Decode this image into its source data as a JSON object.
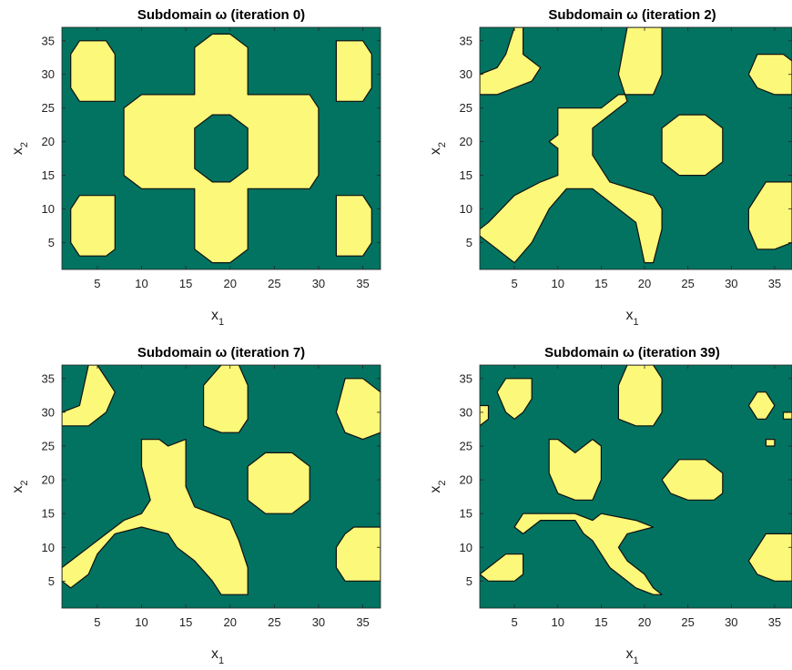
{
  "colors": {
    "background": "#027360",
    "region": "#fbf87a",
    "outline": "#111111",
    "axis": "#262626"
  },
  "chart_data": [
    {
      "type": "region-map",
      "title": "Subdomain ω (iteration 0)",
      "xlabel": "x",
      "xlabel_sub": "1",
      "ylabel": "x",
      "ylabel_sub": "2",
      "xlim": [
        1,
        37
      ],
      "ylim": [
        1,
        37
      ],
      "xticks": [
        5,
        10,
        15,
        20,
        25,
        30,
        35
      ],
      "yticks": [
        5,
        10,
        15,
        20,
        25,
        30,
        35
      ],
      "regions": [
        [
          [
            3,
            35
          ],
          [
            6,
            35
          ],
          [
            7,
            33
          ],
          [
            7,
            26
          ],
          [
            3,
            26
          ],
          [
            2,
            28
          ],
          [
            2,
            33
          ]
        ],
        [
          [
            32,
            35
          ],
          [
            35,
            35
          ],
          [
            36,
            33
          ],
          [
            36,
            28
          ],
          [
            35,
            26
          ],
          [
            32,
            26
          ]
        ],
        [
          [
            3,
            12
          ],
          [
            7,
            12
          ],
          [
            7,
            4
          ],
          [
            6,
            3
          ],
          [
            3,
            3
          ],
          [
            2,
            5
          ],
          [
            2,
            10
          ]
        ],
        [
          [
            32,
            12
          ],
          [
            35,
            12
          ],
          [
            36,
            10
          ],
          [
            36,
            5
          ],
          [
            35,
            3
          ],
          [
            32,
            3
          ]
        ],
        [
          [
            18,
            36
          ],
          [
            20,
            36
          ],
          [
            22,
            34
          ],
          [
            22,
            27
          ],
          [
            29,
            27
          ],
          [
            30,
            25
          ],
          [
            30,
            15
          ],
          [
            29,
            13
          ],
          [
            22,
            13
          ],
          [
            22,
            4
          ],
          [
            20,
            2
          ],
          [
            18,
            2
          ],
          [
            16,
            4
          ],
          [
            16,
            13
          ],
          [
            10,
            13
          ],
          [
            8,
            15
          ],
          [
            8,
            25
          ],
          [
            10,
            27
          ],
          [
            16,
            27
          ],
          [
            16,
            34
          ]
        ],
        [
          [
            18,
            24
          ],
          [
            20,
            24
          ],
          [
            22,
            22
          ],
          [
            22,
            16
          ],
          [
            20,
            14
          ],
          [
            18,
            14
          ],
          [
            16,
            16
          ],
          [
            16,
            22
          ]
        ]
      ],
      "holes": [
        5
      ]
    },
    {
      "type": "region-map",
      "title": "Subdomain ω (iteration 2)",
      "xlabel": "x",
      "xlabel_sub": "1",
      "ylabel": "x",
      "ylabel_sub": "2",
      "xlim": [
        1,
        37
      ],
      "ylim": [
        1,
        37
      ],
      "xticks": [
        5,
        10,
        15,
        20,
        25,
        30,
        35
      ],
      "yticks": [
        5,
        10,
        15,
        20,
        25,
        30,
        35
      ],
      "regions": [
        [
          [
            5,
            37
          ],
          [
            6,
            37
          ],
          [
            6,
            33
          ],
          [
            8,
            31
          ],
          [
            7,
            29
          ],
          [
            5,
            28
          ],
          [
            3,
            27
          ],
          [
            1,
            27
          ],
          [
            1,
            30
          ],
          [
            3,
            31
          ],
          [
            4,
            33
          ]
        ],
        [
          [
            18,
            37
          ],
          [
            22,
            37
          ],
          [
            22,
            30
          ],
          [
            21,
            27
          ],
          [
            17,
            27
          ],
          [
            15,
            25
          ],
          [
            10,
            25
          ],
          [
            10,
            21
          ],
          [
            9,
            20
          ],
          [
            10,
            19
          ],
          [
            10,
            15
          ],
          [
            8,
            14
          ],
          [
            5,
            12
          ],
          [
            2,
            8
          ],
          [
            1,
            7
          ],
          [
            1,
            6
          ],
          [
            3,
            4
          ],
          [
            5,
            2
          ],
          [
            7,
            5
          ],
          [
            9,
            10
          ],
          [
            11,
            13
          ],
          [
            14,
            13
          ],
          [
            16,
            11
          ],
          [
            19,
            8
          ],
          [
            20,
            2
          ],
          [
            21,
            2
          ],
          [
            22,
            7
          ],
          [
            22,
            10
          ],
          [
            21,
            12
          ],
          [
            16,
            14
          ],
          [
            14,
            18
          ],
          [
            14,
            22
          ],
          [
            16,
            24
          ],
          [
            18,
            26
          ],
          [
            17,
            30
          ]
        ],
        [
          [
            33,
            33
          ],
          [
            36,
            33
          ],
          [
            37,
            32
          ],
          [
            37,
            27
          ],
          [
            35,
            27
          ],
          [
            33,
            28
          ],
          [
            32,
            30
          ]
        ],
        [
          [
            24,
            24
          ],
          [
            27,
            24
          ],
          [
            29,
            22
          ],
          [
            29,
            17
          ],
          [
            27,
            15
          ],
          [
            24,
            15
          ],
          [
            22,
            17
          ],
          [
            22,
            22
          ]
        ],
        [
          [
            34,
            14
          ],
          [
            37,
            14
          ],
          [
            37,
            5
          ],
          [
            35,
            4
          ],
          [
            33,
            4
          ],
          [
            32,
            7
          ],
          [
            32,
            10
          ],
          [
            33,
            12
          ]
        ]
      ],
      "holes": []
    },
    {
      "type": "region-map",
      "title": "Subdomain ω (iteration 7)",
      "xlabel": "x",
      "xlabel_sub": "1",
      "ylabel": "x",
      "ylabel_sub": "2",
      "xlim": [
        1,
        37
      ],
      "ylim": [
        1,
        37
      ],
      "xticks": [
        5,
        10,
        15,
        20,
        25,
        30,
        35
      ],
      "yticks": [
        5,
        10,
        15,
        20,
        25,
        30,
        35
      ],
      "regions": [
        [
          [
            4,
            37
          ],
          [
            5,
            37
          ],
          [
            6,
            35
          ],
          [
            7,
            33
          ],
          [
            6,
            30
          ],
          [
            4,
            28
          ],
          [
            1,
            28
          ],
          [
            1,
            30
          ],
          [
            3,
            31
          ]
        ],
        [
          [
            19,
            37
          ],
          [
            21,
            37
          ],
          [
            22,
            34
          ],
          [
            22,
            29
          ],
          [
            21,
            27
          ],
          [
            19,
            27
          ],
          [
            17,
            28
          ],
          [
            17,
            34
          ]
        ],
        [
          [
            33,
            35
          ],
          [
            35,
            35
          ],
          [
            37,
            33
          ],
          [
            37,
            27
          ],
          [
            35,
            26
          ],
          [
            33,
            27
          ],
          [
            32,
            30
          ]
        ],
        [
          [
            10,
            26
          ],
          [
            12,
            26
          ],
          [
            13,
            25
          ],
          [
            15,
            26
          ],
          [
            15,
            24
          ],
          [
            15,
            19
          ],
          [
            16,
            16
          ],
          [
            18,
            15
          ],
          [
            20,
            14
          ],
          [
            21,
            11
          ],
          [
            22,
            7
          ],
          [
            22,
            3
          ],
          [
            19,
            3
          ],
          [
            18,
            5
          ],
          [
            16,
            8
          ],
          [
            14,
            10
          ],
          [
            13,
            12
          ],
          [
            10,
            13
          ],
          [
            7,
            12
          ],
          [
            5,
            9
          ],
          [
            4,
            6
          ],
          [
            2,
            4
          ],
          [
            1,
            5
          ],
          [
            1,
            7
          ],
          [
            2,
            8
          ],
          [
            4,
            10
          ],
          [
            6,
            12
          ],
          [
            8,
            14
          ],
          [
            10,
            15
          ],
          [
            11,
            17
          ],
          [
            10,
            22
          ]
        ],
        [
          [
            24,
            24
          ],
          [
            27,
            24
          ],
          [
            29,
            22
          ],
          [
            29,
            17
          ],
          [
            27,
            15
          ],
          [
            24,
            15
          ],
          [
            22,
            17
          ],
          [
            22,
            22
          ]
        ],
        [
          [
            34,
            13
          ],
          [
            37,
            13
          ],
          [
            37,
            5
          ],
          [
            35,
            5
          ],
          [
            33,
            5
          ],
          [
            32,
            7
          ],
          [
            32,
            10
          ],
          [
            33,
            12
          ]
        ]
      ],
      "holes": []
    },
    {
      "type": "region-map",
      "title": "Subdomain ω (iteration 39)",
      "xlabel": "x",
      "xlabel_sub": "1",
      "ylabel": "x",
      "ylabel_sub": "2",
      "xlim": [
        1,
        37
      ],
      "ylim": [
        1,
        37
      ],
      "xticks": [
        5,
        10,
        15,
        20,
        25,
        30,
        35
      ],
      "yticks": [
        5,
        10,
        15,
        20,
        25,
        30,
        35
      ],
      "regions": [
        [
          [
            4,
            35
          ],
          [
            7,
            35
          ],
          [
            7,
            32
          ],
          [
            6,
            30
          ],
          [
            5,
            29
          ],
          [
            4,
            30
          ],
          [
            3,
            33
          ]
        ],
        [
          [
            18,
            37
          ],
          [
            21,
            37
          ],
          [
            22,
            35
          ],
          [
            22,
            30
          ],
          [
            21,
            28
          ],
          [
            19,
            28
          ],
          [
            17,
            29
          ],
          [
            17,
            34
          ]
        ],
        [
          [
            1,
            31
          ],
          [
            2,
            31
          ],
          [
            2,
            29
          ],
          [
            1,
            28
          ]
        ],
        [
          [
            33,
            33
          ],
          [
            34,
            33
          ],
          [
            35,
            31
          ],
          [
            34,
            29
          ],
          [
            33,
            29
          ],
          [
            32,
            31
          ]
        ],
        [
          [
            36,
            30
          ],
          [
            37,
            30
          ],
          [
            37,
            29
          ],
          [
            36,
            29
          ]
        ],
        [
          [
            34,
            26
          ],
          [
            35,
            26
          ],
          [
            35,
            25
          ],
          [
            34,
            25
          ]
        ],
        [
          [
            9,
            26
          ],
          [
            10,
            26
          ],
          [
            12,
            24
          ],
          [
            14,
            26
          ],
          [
            15,
            25
          ],
          [
            15,
            20
          ],
          [
            14,
            17
          ],
          [
            12,
            17
          ],
          [
            10,
            18
          ],
          [
            9,
            21
          ]
        ],
        [
          [
            24,
            23
          ],
          [
            27,
            23
          ],
          [
            29,
            21
          ],
          [
            29,
            18
          ],
          [
            28,
            17
          ],
          [
            25,
            17
          ],
          [
            23,
            18
          ],
          [
            22,
            20
          ]
        ],
        [
          [
            6,
            15
          ],
          [
            12,
            15
          ],
          [
            14,
            14
          ],
          [
            15,
            15
          ],
          [
            19,
            14
          ],
          [
            21,
            13
          ],
          [
            18,
            12
          ],
          [
            17,
            10
          ],
          [
            18,
            8
          ],
          [
            20,
            6
          ],
          [
            21,
            4
          ],
          [
            22,
            3
          ],
          [
            21,
            3
          ],
          [
            19,
            4
          ],
          [
            18,
            5
          ],
          [
            16,
            7
          ],
          [
            15,
            9
          ],
          [
            14,
            11
          ],
          [
            13,
            12
          ],
          [
            12,
            14
          ],
          [
            8,
            14
          ],
          [
            6,
            12
          ],
          [
            5,
            13
          ]
        ],
        [
          [
            4,
            9
          ],
          [
            6,
            9
          ],
          [
            6,
            6
          ],
          [
            5,
            5
          ],
          [
            2,
            5
          ],
          [
            1,
            6
          ],
          [
            2,
            7
          ]
        ],
        [
          [
            34,
            12
          ],
          [
            37,
            12
          ],
          [
            37,
            5
          ],
          [
            35,
            5
          ],
          [
            33,
            6
          ],
          [
            32,
            8
          ],
          [
            33,
            10
          ]
        ]
      ],
      "holes": []
    }
  ]
}
